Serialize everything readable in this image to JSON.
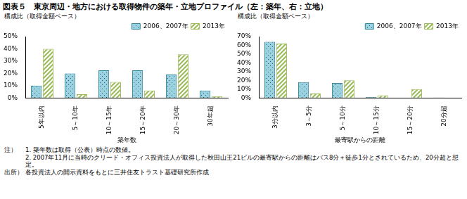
{
  "title": "図表５　東京周辺・地方における取得物件の築年・立地プロファイル（左：築年、右：立地）",
  "chart_data": [
    {
      "type": "bar",
      "y_label": "構成比（取得金額ベース）",
      "x_label": "築年数",
      "categories": [
        "5年以内",
        "5～10年",
        "10～15年",
        "15～20年",
        "20～30年",
        "30年超"
      ],
      "series": [
        {
          "name": "2006、2007年",
          "color": "#4bacc6",
          "values": [
            10,
            20,
            22.5,
            22.5,
            19,
            6
          ]
        },
        {
          "name": "2013年",
          "color": "#9bbb59",
          "values": [
            40,
            3,
            13,
            6,
            35.5,
            1.5
          ]
        }
      ],
      "ylim": [
        0,
        50
      ],
      "yticks": [
        {
          "value": 0,
          "label": "0%"
        },
        {
          "value": 10,
          "label": "10%"
        },
        {
          "value": 20,
          "label": "20%"
        },
        {
          "value": 30,
          "label": "30%"
        },
        {
          "value": 40,
          "label": "40%"
        },
        {
          "value": 50,
          "label": "50%"
        }
      ],
      "grid": false,
      "legend": "upper-right"
    },
    {
      "type": "bar",
      "y_label": "構成比（取得金額ベース）",
      "x_label": "最寄駅からの距離",
      "categories": [
        "3分以内",
        "3～5分",
        "5～10分",
        "10～15分",
        "15～20分",
        "20分超"
      ],
      "series": [
        {
          "name": "2006、2007年",
          "color": "#4bacc6",
          "values": [
            64,
            18,
            17,
            1,
            0,
            0.5
          ]
        },
        {
          "name": "2013年",
          "color": "#9bbb59",
          "values": [
            62,
            5,
            20,
            3,
            10,
            0
          ]
        }
      ],
      "ylim": [
        0,
        70
      ],
      "yticks": [
        {
          "value": 0,
          "label": "0%"
        },
        {
          "value": 10,
          "label": "10%"
        },
        {
          "value": 20,
          "label": "20%"
        },
        {
          "value": 30,
          "label": "30%"
        },
        {
          "value": 40,
          "label": "40%"
        },
        {
          "value": 50,
          "label": "50%"
        },
        {
          "value": 60,
          "label": "60%"
        },
        {
          "value": 70,
          "label": "70%"
        }
      ],
      "grid": false,
      "legend": "upper-right"
    }
  ],
  "notes_head": "注）",
  "notes": [
    "1. 築年数は取得（公表）時点の数値。",
    "2. 2007年11月に当時のクリード・オフィス投資法人が取得した秋田山王21ビルの最寄駅からの距離はバス8分＋徒歩1分とされているため、20分超と想定。"
  ],
  "source_head": "出所）",
  "source": "各投資法人の開示資料をもとに三井住友トラスト基礎研究所作成"
}
